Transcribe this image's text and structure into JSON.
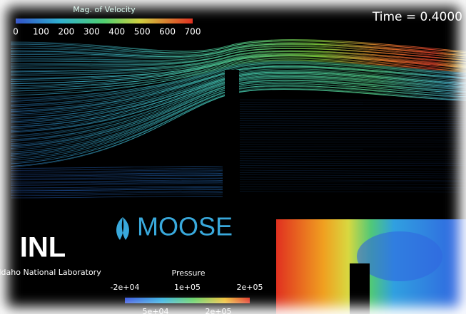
{
  "velocity_legend": {
    "title": "Mag. of Velocity",
    "ticks": [
      "0",
      "100",
      "200",
      "300",
      "400",
      "500",
      "600",
      "700"
    ]
  },
  "time_label": "Time = 0.4000",
  "logo": {
    "brand": "MOOSE"
  },
  "inl": {
    "acronym": "INL",
    "name": "Idaho National Laboratory"
  },
  "pressure_legend": {
    "title": "Pressure",
    "ticks": [
      "-2e+04",
      "1e+05",
      "2e+05"
    ],
    "minor_ticks": [
      "5e+04",
      "2e+05"
    ]
  }
}
